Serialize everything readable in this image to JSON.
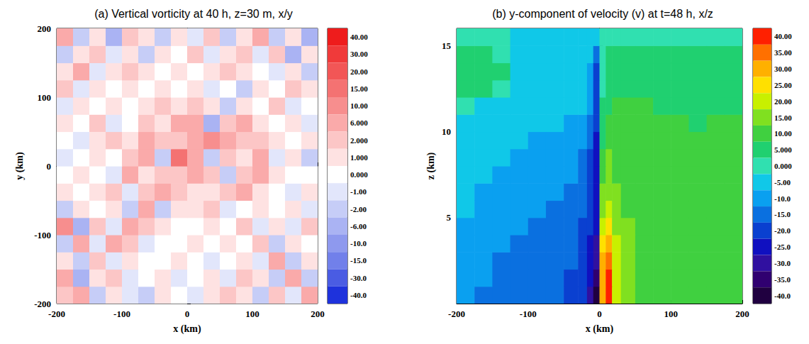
{
  "chart_data": [
    {
      "type": "heatmap",
      "title": "(a) Vertical vorticity at 40 h, z=30 m, x/y",
      "xlabel": "x (km)",
      "ylabel": "y (km)",
      "xlim": [
        -200,
        200
      ],
      "ylim": [
        -200,
        200
      ],
      "xticks": [
        -200,
        -100,
        0,
        100,
        200
      ],
      "yticks": [
        -200,
        -100,
        0,
        100,
        200
      ],
      "x": [
        -187.5,
        -162.5,
        -137.5,
        -112.5,
        -87.5,
        -62.5,
        -37.5,
        -12.5,
        12.5,
        37.5,
        62.5,
        87.5,
        112.5,
        137.5,
        162.5,
        187.5
      ],
      "y": [
        -187.5,
        -162.5,
        -137.5,
        -112.5,
        -87.5,
        -62.5,
        -37.5,
        -12.5,
        12.5,
        37.5,
        62.5,
        87.5,
        112.5,
        137.5,
        162.5,
        187.5
      ],
      "values": [
        [
          2,
          6,
          -2,
          1,
          -1,
          -2,
          1,
          0,
          -1,
          1,
          2,
          1,
          -2,
          2,
          -1,
          6
        ],
        [
          6,
          -6,
          1,
          2,
          -1,
          0,
          1,
          -1,
          0,
          1,
          -1,
          2,
          1,
          -2,
          6,
          -2
        ],
        [
          1,
          -2,
          2,
          -1,
          1,
          0,
          0,
          1,
          0,
          -1,
          0,
          1,
          -1,
          6,
          -2,
          1
        ],
        [
          -2,
          6,
          -1,
          6,
          2,
          -1,
          0,
          0,
          1,
          0,
          1,
          0,
          2,
          -2,
          1,
          0
        ],
        [
          10,
          -6,
          2,
          -1,
          6,
          2,
          1,
          0,
          0,
          1,
          0,
          2,
          -1,
          1,
          -1,
          2
        ],
        [
          -2,
          1,
          0,
          1,
          -2,
          6,
          -2,
          1,
          1,
          2,
          -1,
          0,
          1,
          0,
          1,
          -1
        ],
        [
          1,
          0,
          1,
          2,
          -1,
          2,
          6,
          2,
          1,
          1,
          2,
          6,
          1,
          0,
          -1,
          1
        ],
        [
          0,
          1,
          0,
          -1,
          6,
          1,
          2,
          2,
          6,
          2,
          -2,
          2,
          6,
          1,
          0,
          0
        ],
        [
          -1,
          0,
          1,
          0,
          2,
          6,
          -2,
          15,
          6,
          -2,
          2,
          1,
          6,
          -1,
          1,
          -2
        ],
        [
          0,
          -1,
          1,
          2,
          1,
          6,
          2,
          2,
          6,
          10,
          6,
          2,
          2,
          1,
          0,
          1
        ],
        [
          1,
          0,
          2,
          -1,
          0,
          2,
          1,
          6,
          6,
          -6,
          2,
          6,
          1,
          0,
          1,
          -1
        ],
        [
          -1,
          1,
          0,
          1,
          0,
          1,
          2,
          1,
          2,
          1,
          -2,
          1,
          0,
          2,
          -1,
          0
        ],
        [
          2,
          -1,
          1,
          0,
          1,
          0,
          1,
          0,
          1,
          -1,
          0,
          -2,
          1,
          0,
          2,
          1
        ],
        [
          1,
          6,
          -1,
          1,
          2,
          1,
          0,
          1,
          0,
          1,
          2,
          1,
          0,
          -1,
          1,
          -2
        ],
        [
          -2,
          1,
          2,
          -1,
          1,
          -2,
          1,
          0,
          2,
          -1,
          1,
          2,
          -1,
          2,
          -6,
          1
        ],
        [
          6,
          -2,
          1,
          -6,
          2,
          1,
          -2,
          1,
          -1,
          2,
          -2,
          1,
          6,
          -2,
          1,
          -6
        ]
      ],
      "colorbar_ticks": [
        {
          "value": 40,
          "label": "40.00"
        },
        {
          "value": 30,
          "label": "30.00"
        },
        {
          "value": 20,
          "label": "20.00"
        },
        {
          "value": 15,
          "label": "15.00"
        },
        {
          "value": 10,
          "label": "10.00"
        },
        {
          "value": 6,
          "label": "6.000"
        },
        {
          "value": 2,
          "label": "2.000"
        },
        {
          "value": 1,
          "label": "1.000"
        },
        {
          "value": 0,
          "label": "0.000"
        },
        {
          "value": -1,
          "label": "-1.00"
        },
        {
          "value": -2,
          "label": "-2.00"
        },
        {
          "value": -6,
          "label": "-6.00"
        },
        {
          "value": -10,
          "label": "-10.0"
        },
        {
          "value": -15,
          "label": "-15.0"
        },
        {
          "value": -30,
          "label": "-30.0"
        },
        {
          "value": -40,
          "label": "-40.0"
        }
      ],
      "colors": [
        "#ee1c1c",
        "#f03a3a",
        "#f25656",
        "#f47272",
        "#f78e8e",
        "#faaaaa",
        "#fcc6c6",
        "#fee2e2",
        "#ffffff",
        "#e2e6fb",
        "#c6cdf7",
        "#aab3f3",
        "#8e99ee",
        "#7180ea",
        "#4a5ce3",
        "#1e32dc"
      ]
    },
    {
      "type": "heatmap",
      "title": "(b) y-component of velocity (v) at t=48 h, x/z",
      "xlabel": "x (km)",
      "ylabel": "z (km)",
      "xlim": [
        -200,
        200
      ],
      "ylim": [
        0,
        16
      ],
      "xticks": [
        -200,
        -100,
        0,
        100,
        200
      ],
      "yticks": [
        5,
        10,
        15
      ],
      "x": [
        -187.5,
        -162.5,
        -137.5,
        -112.5,
        -87.5,
        -62.5,
        -37.5,
        -22.5,
        -12.5,
        -5,
        5,
        12.5,
        22.5,
        37.5,
        62.5,
        87.5,
        112.5,
        137.5,
        162.5,
        187.5
      ],
      "y": [
        0.5,
        1.5,
        2.5,
        3.5,
        4.5,
        5.5,
        6.5,
        7.5,
        8.5,
        9.5,
        10.5,
        11.5,
        12.5,
        13.5,
        14.5,
        15.5
      ],
      "values": [
        [
          -10,
          -15,
          -15,
          -15,
          -15,
          -15,
          -20,
          -20,
          -30,
          -40,
          30,
          40,
          20,
          15,
          10,
          10,
          10,
          10,
          10,
          10
        ],
        [
          -10,
          -10,
          -15,
          -15,
          -15,
          -15,
          -20,
          -20,
          -25,
          -35,
          30,
          40,
          20,
          15,
          10,
          10,
          10,
          10,
          10,
          10
        ],
        [
          -10,
          -10,
          -15,
          -15,
          -15,
          -15,
          -15,
          -20,
          -25,
          -30,
          30,
          35,
          20,
          15,
          10,
          10,
          10,
          10,
          10,
          10
        ],
        [
          -10,
          -10,
          -10,
          -15,
          -15,
          -15,
          -15,
          -20,
          -25,
          -30,
          25,
          30,
          20,
          15,
          10,
          10,
          10,
          10,
          10,
          10
        ],
        [
          -10,
          -10,
          -10,
          -10,
          -15,
          -15,
          -15,
          -20,
          -20,
          -25,
          20,
          25,
          15,
          15,
          10,
          10,
          10,
          10,
          10,
          10
        ],
        [
          -5,
          -10,
          -10,
          -10,
          -10,
          -15,
          -15,
          -15,
          -20,
          -25,
          15,
          20,
          15,
          10,
          10,
          10,
          10,
          10,
          10,
          10
        ],
        [
          -5,
          -10,
          -10,
          -10,
          -10,
          -10,
          -15,
          -15,
          -20,
          -25,
          15,
          15,
          15,
          10,
          10,
          10,
          10,
          10,
          10,
          10
        ],
        [
          -5,
          -5,
          -10,
          -10,
          -10,
          -10,
          -10,
          -15,
          -20,
          -25,
          10,
          15,
          10,
          10,
          10,
          10,
          10,
          10,
          10,
          10
        ],
        [
          -5,
          -5,
          -5,
          -10,
          -10,
          -10,
          -10,
          -15,
          -20,
          -25,
          10,
          15,
          10,
          10,
          10,
          10,
          10,
          10,
          10,
          10
        ],
        [
          -5,
          -5,
          -5,
          -5,
          -10,
          -10,
          -10,
          -10,
          -15,
          -25,
          5,
          10,
          10,
          10,
          10,
          10,
          10,
          10,
          10,
          10
        ],
        [
          -5,
          -5,
          -5,
          -5,
          -5,
          -5,
          -10,
          -10,
          -15,
          -20,
          5,
          10,
          10,
          10,
          10,
          10,
          10,
          5,
          10,
          10
        ],
        [
          0,
          -5,
          -5,
          -5,
          -5,
          -5,
          -5,
          -5,
          -10,
          -20,
          5,
          5,
          10,
          10,
          10,
          5,
          5,
          5,
          5,
          5
        ],
        [
          5,
          5,
          0,
          -5,
          -5,
          -5,
          -5,
          -5,
          -10,
          -20,
          0,
          5,
          5,
          5,
          5,
          5,
          5,
          5,
          5,
          5
        ],
        [
          5,
          5,
          5,
          -5,
          -5,
          -5,
          -5,
          -5,
          -10,
          -20,
          0,
          5,
          5,
          5,
          5,
          5,
          5,
          5,
          5,
          5
        ],
        [
          5,
          5,
          0,
          -5,
          -5,
          -5,
          -5,
          -5,
          -5,
          -15,
          0,
          5,
          5,
          5,
          5,
          5,
          5,
          5,
          5,
          5
        ],
        [
          0,
          0,
          0,
          -5,
          -5,
          -5,
          -5,
          -5,
          -5,
          -5,
          0,
          0,
          0,
          0,
          0,
          0,
          0,
          0,
          0,
          0
        ]
      ],
      "colorbar_ticks": [
        {
          "value": 40,
          "label": "40.00"
        },
        {
          "value": 35,
          "label": "35.00"
        },
        {
          "value": 30,
          "label": "30.00"
        },
        {
          "value": 25,
          "label": "25.00"
        },
        {
          "value": 20,
          "label": "20.00"
        },
        {
          "value": 15,
          "label": "15.00"
        },
        {
          "value": 10,
          "label": "10.00"
        },
        {
          "value": 5,
          "label": "5.000"
        },
        {
          "value": 0,
          "label": "0.000"
        },
        {
          "value": -5,
          "label": "-5.00"
        },
        {
          "value": -10,
          "label": "-10.0"
        },
        {
          "value": -15,
          "label": "-15.0"
        },
        {
          "value": -20,
          "label": "-20.0"
        },
        {
          "value": -25,
          "label": "-25.0"
        },
        {
          "value": -30,
          "label": "-30.0"
        },
        {
          "value": -35,
          "label": "-35.0"
        },
        {
          "value": -40,
          "label": "-40.0"
        }
      ],
      "colors": [
        "#ff2000",
        "#ff7000",
        "#ffb000",
        "#ffe000",
        "#c8f000",
        "#80e020",
        "#40d040",
        "#20d070",
        "#30e0b0",
        "#10c8e8",
        "#0aa0f0",
        "#0a70e0",
        "#0a40d0",
        "#1010c0",
        "#3010a0",
        "#300070",
        "#200040"
      ]
    }
  ]
}
